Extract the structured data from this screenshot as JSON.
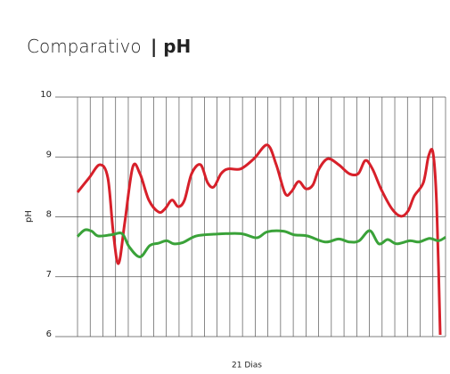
{
  "chart_data": {
    "type": "line",
    "title": "Comparativo",
    "title_bold": "| pH",
    "x_label": "21 Dias",
    "y_label": "pH",
    "xlim": [
      0,
      29
    ],
    "xticks": [
      0,
      1,
      2,
      3,
      4,
      5,
      6,
      7,
      8,
      9,
      10,
      11,
      12,
      13,
      14,
      15,
      16,
      17,
      18,
      19,
      20,
      21,
      22,
      23,
      24,
      25,
      26,
      27,
      28,
      29
    ],
    "ylim": [
      6,
      10
    ],
    "yticks": [
      6,
      7,
      8,
      9,
      10
    ],
    "grid": true,
    "series": [
      {
        "color": "#d7202a",
        "x": [
          0,
          0.91,
          1.76,
          2.39,
          2.81,
          3.23,
          3.72,
          4.35,
          4.92,
          5.62,
          6.39,
          6.88,
          7.44,
          7.94,
          8.43,
          8.99,
          9.69,
          10.25,
          10.74,
          11.31,
          11.87,
          12.85,
          13.9,
          14.96,
          15.66,
          16.36,
          16.85,
          17.42,
          17.98,
          18.54,
          19.03,
          19.73,
          20.58,
          21.42,
          22.12,
          22.68,
          23.24,
          23.95,
          24.79,
          25.49,
          26.05,
          26.54,
          27.25,
          27.67,
          28.02,
          28.3,
          28.58
        ],
        "values": [
          8.41,
          8.65,
          8.87,
          8.65,
          7.75,
          7.22,
          7.9,
          8.83,
          8.72,
          8.28,
          8.08,
          8.13,
          8.28,
          8.17,
          8.28,
          8.72,
          8.87,
          8.57,
          8.5,
          8.72,
          8.8,
          8.8,
          8.97,
          9.2,
          8.87,
          8.39,
          8.42,
          8.59,
          8.47,
          8.53,
          8.8,
          8.97,
          8.87,
          8.72,
          8.72,
          8.94,
          8.8,
          8.45,
          8.13,
          8.01,
          8.1,
          8.35,
          8.57,
          9.02,
          9.06,
          8.2,
          6.03
        ]
      },
      {
        "color": "#3aa239",
        "x": [
          0,
          0.56,
          1.12,
          1.62,
          2.67,
          3.51,
          4.07,
          4.92,
          5.69,
          6.39,
          7.02,
          7.58,
          8.29,
          9.34,
          10.74,
          12.85,
          14.11,
          14.96,
          16.22,
          17.06,
          18.12,
          19.52,
          20.58,
          21.42,
          22.19,
          23.03,
          23.74,
          24.44,
          25.14,
          26.19,
          26.9,
          27.74,
          28.44,
          29
        ],
        "values": [
          7.67,
          7.78,
          7.76,
          7.68,
          7.7,
          7.72,
          7.5,
          7.33,
          7.52,
          7.56,
          7.6,
          7.55,
          7.57,
          7.68,
          7.71,
          7.72,
          7.65,
          7.75,
          7.76,
          7.7,
          7.68,
          7.58,
          7.63,
          7.58,
          7.6,
          7.77,
          7.55,
          7.62,
          7.55,
          7.6,
          7.58,
          7.64,
          7.6,
          7.66
        ]
      }
    ]
  }
}
